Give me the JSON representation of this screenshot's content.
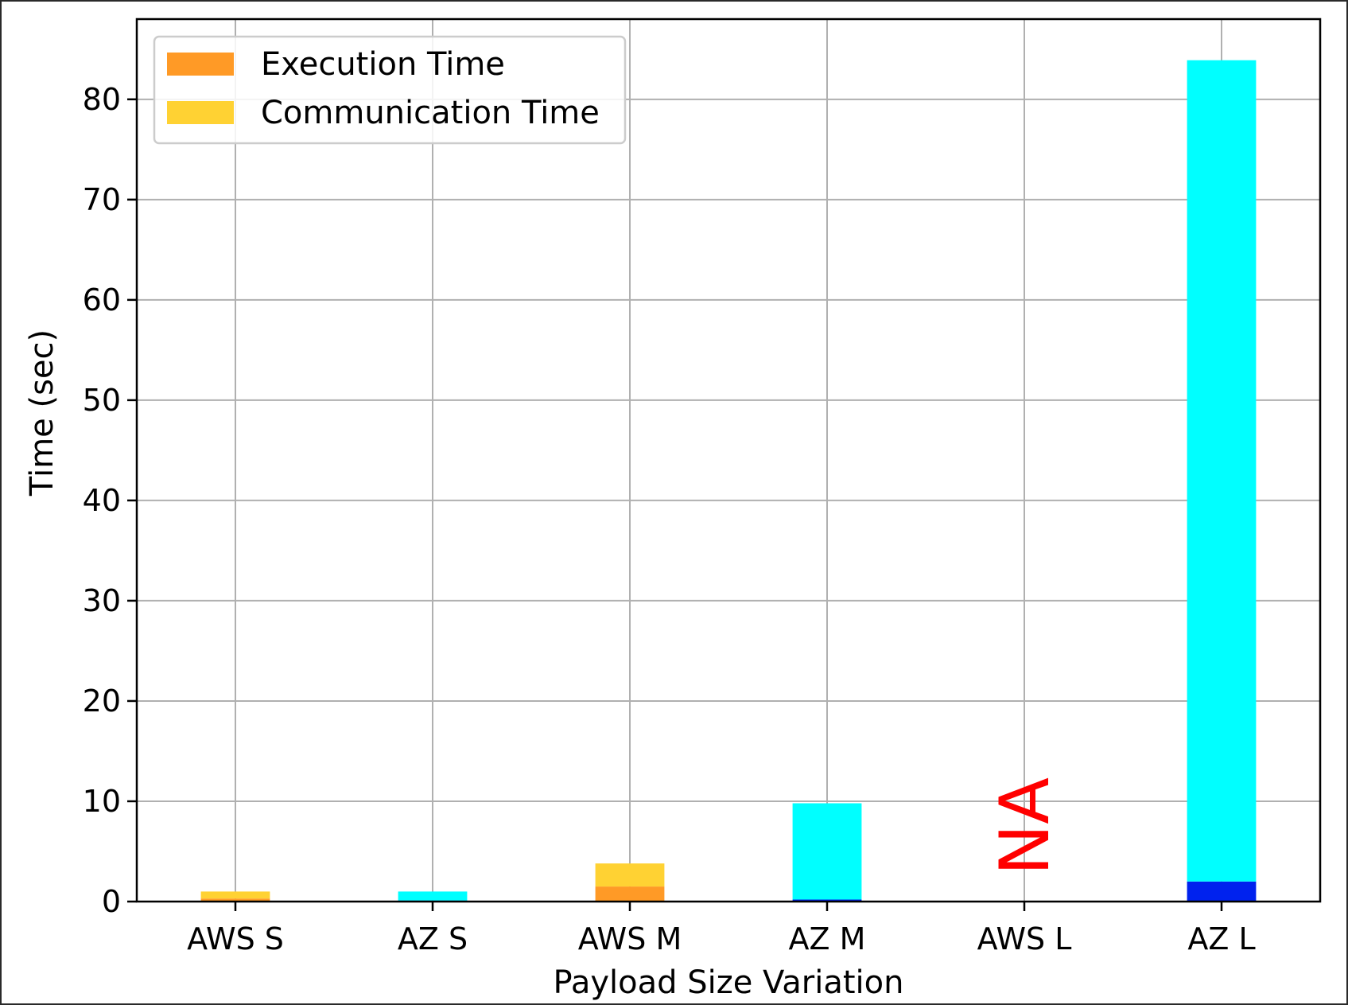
{
  "chart_data": {
    "type": "bar",
    "stacked": true,
    "title": "",
    "xlabel": "Payload Size Variation",
    "ylabel": "Time (sec)",
    "ylim": [
      0,
      88
    ],
    "yticks": [
      0,
      10,
      20,
      30,
      40,
      50,
      60,
      70,
      80
    ],
    "grid": true,
    "legend_position": "top-left",
    "categories": [
      "AWS S",
      "AZ S",
      "AWS M",
      "AZ M",
      "AWS L",
      "AZ L"
    ],
    "series": [
      {
        "name": "Execution Time",
        "color": "#ff9a26",
        "az_color": "#0022ee",
        "values": [
          0.3,
          0.1,
          1.5,
          0.2,
          null,
          2.0
        ]
      },
      {
        "name": "Communication Time",
        "color": "#ffd233",
        "az_color": "#00ffff",
        "values": [
          0.7,
          0.9,
          2.3,
          9.6,
          null,
          81.9
        ]
      }
    ],
    "annotations": [
      {
        "category": "AWS L",
        "text": "NA",
        "color": "#ff0000",
        "rotation": -90
      }
    ]
  }
}
